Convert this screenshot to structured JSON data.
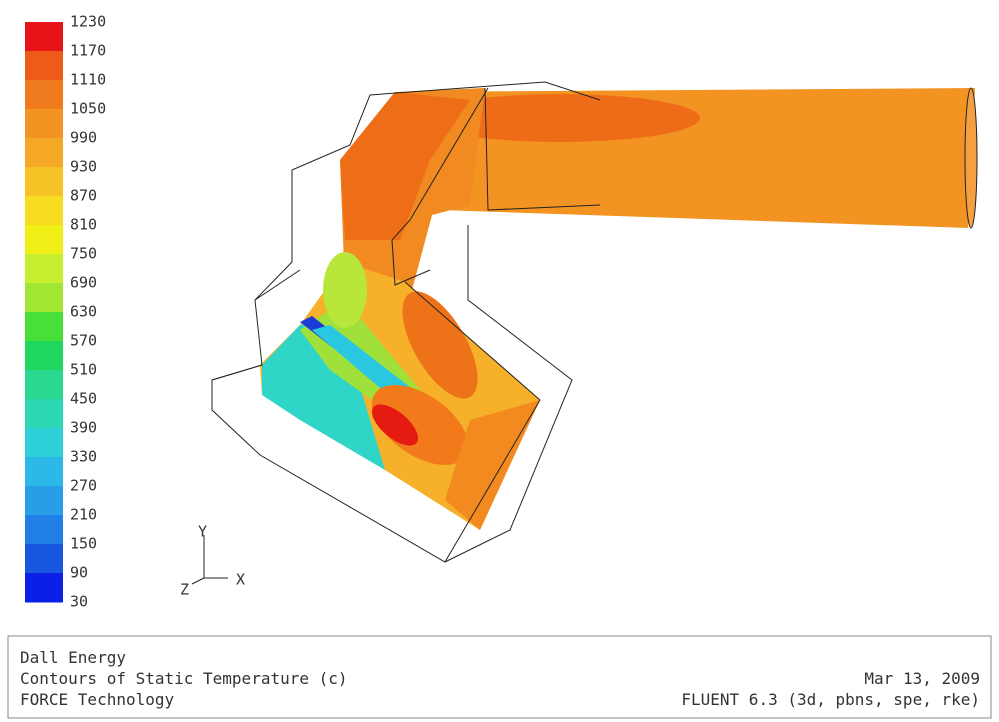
{
  "colorbar": {
    "labels": [
      "1230",
      "1170",
      "1110",
      "1050",
      "990",
      "930",
      "870",
      "810",
      "750",
      "690",
      "630",
      "570",
      "510",
      "450",
      "390",
      "330",
      "270",
      "210",
      "150",
      "90",
      "30"
    ]
  },
  "triad": {
    "y": "Y",
    "z": "Z",
    "x": "X"
  },
  "footer": {
    "left": [
      "Dall Energy",
      "Contours of Static Temperature (c)",
      "FORCE Technology"
    ],
    "right": [
      "Mar 13, 2009",
      "FLUENT 6.3 (3d, pbns, spe, rke)"
    ]
  }
}
